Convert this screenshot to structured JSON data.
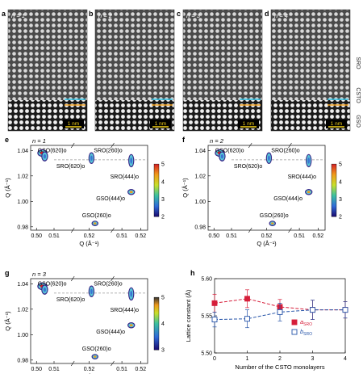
{
  "stem_panels": [
    {
      "letter": "a",
      "n_label": "n = 1",
      "scale_label": "1 nm"
    },
    {
      "letter": "b",
      "n_label": "n = 2",
      "scale_label": "1 nm"
    },
    {
      "letter": "c",
      "n_label": "n = 3",
      "scale_label": "1 nm"
    },
    {
      "letter": "d",
      "n_label": "n = 4",
      "scale_label": "1 nm"
    }
  ],
  "layer_labels": [
    "SRO",
    "CSTO",
    "GSO"
  ],
  "rsm_panels": [
    {
      "letter": "e",
      "n_label": "n = 1",
      "colorbar_ticks": [
        "5",
        "4",
        "3",
        "2"
      ],
      "peaks": [
        {
          "name": "GSO(620)o",
          "level": 5
        },
        {
          "name": "SRO(620)o",
          "level": 3
        },
        {
          "name": "SRO(260)o",
          "level": 3
        },
        {
          "name": "SRO(444)o",
          "level": 3
        },
        {
          "name": "GSO(444)o",
          "level": 4
        },
        {
          "name": "GSO(260)o",
          "level": 4
        }
      ]
    },
    {
      "letter": "f",
      "n_label": "n = 2",
      "colorbar_ticks": [
        "5",
        "4",
        "3",
        "2"
      ],
      "peaks": [
        {
          "name": "GSO(620)o",
          "level": 5
        },
        {
          "name": "SRO(620)o",
          "level": 3
        },
        {
          "name": "SRO(260)o",
          "level": 3
        },
        {
          "name": "SRO(444)o",
          "level": 3
        },
        {
          "name": "GSO(444)o",
          "level": 4
        },
        {
          "name": "GSO(260)o",
          "level": 4
        }
      ]
    },
    {
      "letter": "g",
      "n_label": "n = 3",
      "colorbar_ticks": [
        "5",
        "4",
        "3"
      ],
      "peaks": [
        {
          "name": "GSO(620)o",
          "level": 5
        },
        {
          "name": "SRO(620)o",
          "level": 3
        },
        {
          "name": "SRO(260)o",
          "level": 3
        },
        {
          "name": "SRO(444)o",
          "level": 3
        },
        {
          "name": "GSO(444)o",
          "level": 4
        },
        {
          "name": "GSO(260)o",
          "level": 4
        }
      ]
    }
  ],
  "rsm_axes": {
    "xlabel": "Q (Å⁻¹)",
    "ylabel": "Q (Å⁻¹)",
    "yticks": [
      "1.04",
      "1.02",
      "1.00",
      "0.98"
    ],
    "xticks": [
      "0.50",
      "0.51",
      "0.52",
      "0.51",
      "0.52"
    ]
  },
  "chart_data": {
    "type": "line",
    "panel": "h",
    "xlabel": "Number of the CSTO monolayers",
    "ylabel": "Lattice constant (Å)",
    "x": [
      0,
      1,
      2,
      3,
      4
    ],
    "xlim": [
      0,
      4
    ],
    "ylim": [
      5.5,
      5.6
    ],
    "xticks": [
      "0",
      "1",
      "2",
      "3",
      "4"
    ],
    "yticks": [
      "5.60",
      "5.55",
      "5.50"
    ],
    "series": [
      {
        "name": "a",
        "sub": "SRO",
        "marker": "filled-square",
        "color": "#d61e3a",
        "values": [
          5.567,
          5.573,
          5.562,
          5.558,
          5.558
        ],
        "errors": [
          0.012,
          0.012,
          0.01,
          0.013,
          0.011
        ]
      },
      {
        "name": "b",
        "sub": "SRO",
        "marker": "open-square",
        "color": "#2553a8",
        "values": [
          5.545,
          5.546,
          5.555,
          5.558,
          5.558
        ],
        "errors": [
          0.01,
          0.012,
          0.012,
          0.013,
          0.011
        ]
      }
    ]
  }
}
